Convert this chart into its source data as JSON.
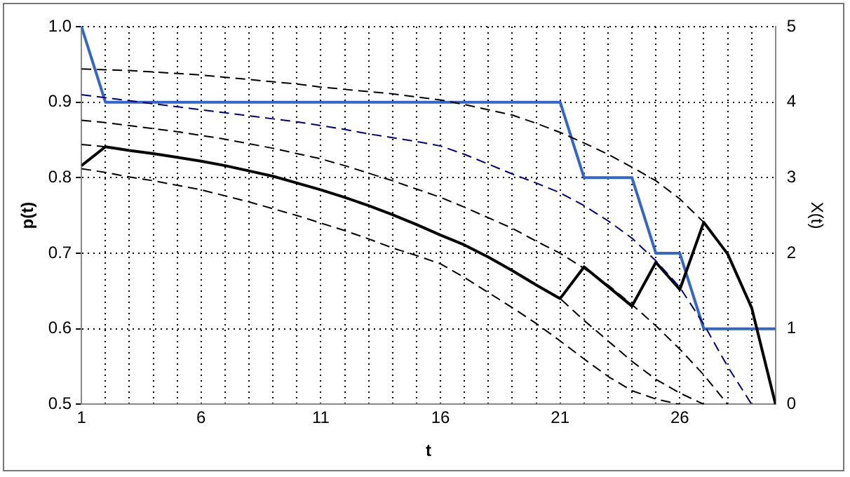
{
  "chart_data": {
    "type": "line",
    "xlabel": "t",
    "ylabel": "p(t)",
    "y2label": "X(t)",
    "x": [
      1,
      2,
      3,
      4,
      5,
      6,
      7,
      8,
      9,
      10,
      11,
      12,
      13,
      14,
      15,
      16,
      17,
      18,
      19,
      20,
      21,
      22,
      23,
      24,
      25,
      26,
      27,
      28,
      29,
      30
    ],
    "xlim": [
      1,
      30
    ],
    "xticks": [
      1,
      {
        "value": 2,
        "label": null
      },
      {
        "value": 3,
        "label": null
      },
      {
        "value": 4,
        "label": null
      },
      {
        "value": 5,
        "label": null
      },
      6,
      {
        "value": 7,
        "label": null
      },
      {
        "value": 8,
        "label": null
      },
      {
        "value": 9,
        "label": null
      },
      {
        "value": 10,
        "label": null
      },
      11,
      {
        "value": 12,
        "label": null
      },
      {
        "value": 13,
        "label": null
      },
      {
        "value": 14,
        "label": null
      },
      {
        "value": 15,
        "label": null
      },
      16,
      {
        "value": 17,
        "label": null
      },
      {
        "value": 18,
        "label": null
      },
      {
        "value": 19,
        "label": null
      },
      {
        "value": 20,
        "label": null
      },
      21,
      {
        "value": 22,
        "label": null
      },
      {
        "value": 23,
        "label": null
      },
      {
        "value": 24,
        "label": null
      },
      {
        "value": 25,
        "label": null
      },
      26,
      {
        "value": 27,
        "label": null
      },
      {
        "value": 28,
        "label": null
      },
      {
        "value": 29,
        "label": null
      },
      {
        "value": 30,
        "label": null
      }
    ],
    "ylim": [
      0.5,
      1.0
    ],
    "yticks": [
      {
        "value": 0.5,
        "label": "0.5"
      },
      {
        "value": 0.6,
        "label": "0.6"
      },
      {
        "value": 0.7,
        "label": "0.7"
      },
      {
        "value": 0.8,
        "label": "0.8"
      },
      {
        "value": 0.9,
        "label": "0.9"
      },
      {
        "value": 1.0,
        "label": "1.0"
      }
    ],
    "y2lim": [
      0,
      5
    ],
    "y2ticks": [
      0,
      1,
      2,
      3,
      4,
      5
    ],
    "grid": true,
    "legend": false,
    "marker": "none",
    "series": [
      {
        "color": "#000000",
        "line_style": "dashed",
        "values": [
          0.944,
          0.943,
          0.942,
          0.94,
          0.938,
          0.936,
          0.933,
          0.93,
          0.927,
          0.924,
          0.92,
          0.917,
          0.914,
          0.911,
          0.907,
          0.903,
          0.897,
          0.89,
          0.883,
          0.872,
          0.86,
          0.846,
          0.831,
          0.814,
          0.796,
          0.772,
          0.741,
          0.699,
          0.628,
          0.5
        ]
      },
      {
        "color": "#000080",
        "line_style": "dashed",
        "values": [
          0.91,
          0.906,
          0.902,
          0.898,
          0.894,
          0.89,
          0.886,
          0.882,
          0.878,
          0.874,
          0.869,
          0.864,
          0.858,
          0.853,
          0.848,
          0.842,
          0.831,
          0.818,
          0.805,
          0.793,
          0.78,
          0.763,
          0.743,
          0.72,
          0.69,
          0.655,
          0.606,
          0.55,
          0.5,
          null
        ]
      },
      {
        "color": "#000000",
        "line_style": "dashed",
        "values": [
          0.876,
          0.873,
          0.869,
          0.865,
          0.861,
          0.856,
          0.851,
          0.845,
          0.839,
          0.832,
          0.825,
          0.816,
          0.806,
          0.796,
          0.785,
          0.774,
          0.761,
          0.747,
          0.733,
          0.716,
          0.7,
          0.68,
          0.658,
          0.632,
          0.604,
          0.573,
          0.539,
          0.5,
          null,
          null
        ]
      },
      {
        "color": "#000000",
        "line_style": "dashed",
        "values": [
          0.844,
          0.841,
          0.836,
          0.832,
          0.827,
          0.822,
          0.816,
          0.809,
          0.802,
          0.793,
          0.784,
          0.774,
          0.763,
          0.751,
          0.738,
          0.724,
          0.711,
          0.695,
          0.677,
          0.658,
          0.64,
          0.611,
          0.584,
          0.557,
          0.533,
          0.515,
          0.5,
          null,
          null,
          null
        ]
      },
      {
        "color": "#000000",
        "line_style": "dashed",
        "values": [
          0.812,
          0.807,
          0.801,
          0.796,
          0.79,
          0.784,
          0.776,
          0.768,
          0.759,
          0.75,
          0.74,
          0.73,
          0.719,
          0.707,
          0.697,
          0.686,
          0.668,
          0.648,
          0.628,
          0.607,
          0.584,
          0.56,
          0.537,
          0.518,
          0.507,
          0.5,
          null,
          null,
          null,
          null
        ]
      },
      {
        "color": "#000000",
        "line_style": "solid",
        "values": [
          0.816,
          0.841,
          0.836,
          0.832,
          0.827,
          0.822,
          0.816,
          0.809,
          0.802,
          0.793,
          0.784,
          0.774,
          0.763,
          0.751,
          0.738,
          0.724,
          0.711,
          0.695,
          0.677,
          0.658,
          0.64,
          0.682,
          0.656,
          0.63,
          0.688,
          0.652,
          0.741,
          0.699,
          0.628,
          0.5
        ]
      },
      {
        "color": "#3366cc",
        "line_style": "solid",
        "axis": "y2",
        "values": [
          5,
          4,
          4,
          4,
          4,
          4,
          4,
          4,
          4,
          4,
          4,
          4,
          4,
          4,
          4,
          4,
          4,
          4,
          4,
          4,
          4,
          3,
          3,
          3,
          2,
          2,
          1,
          1,
          1,
          1
        ]
      }
    ]
  }
}
